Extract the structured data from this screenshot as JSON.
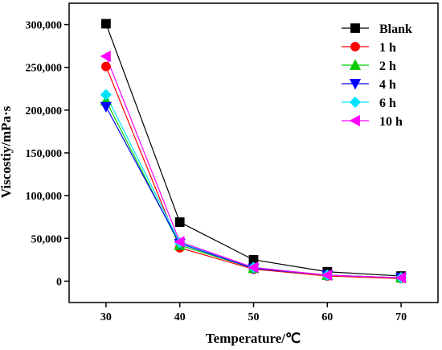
{
  "chart_data": {
    "type": "line",
    "title": "",
    "xlabel": "Temperature/℃",
    "ylabel": "Viscostiy/mPa·s",
    "x": [
      30,
      40,
      50,
      60,
      70
    ],
    "xlim": [
      25,
      75
    ],
    "ylim": [
      -25000,
      325000
    ],
    "xticks": [
      30,
      40,
      50,
      60,
      70
    ],
    "yticks": [
      0,
      50000,
      100000,
      150000,
      200000,
      250000,
      300000
    ],
    "ytick_labels": [
      "0",
      "50,000",
      "100,000",
      "150,000",
      "200,000",
      "250,000",
      "300,000"
    ],
    "grid": false,
    "legend_position": "top-right",
    "series": [
      {
        "name": "Blank",
        "values": [
          301000,
          69000,
          25000,
          11000,
          6000
        ],
        "color": "#000000",
        "marker": "square"
      },
      {
        "name": "1 h",
        "values": [
          251000,
          39000,
          14000,
          6000,
          3000
        ],
        "color": "#ff0000",
        "marker": "circle"
      },
      {
        "name": "2 h",
        "values": [
          211000,
          42000,
          15000,
          7000,
          4000
        ],
        "color": "#00cc00",
        "marker": "triangle-up"
      },
      {
        "name": "4 h",
        "values": [
          204000,
          44000,
          15000,
          7000,
          4000
        ],
        "color": "#0000ff",
        "marker": "triangle-down"
      },
      {
        "name": "6 h",
        "values": [
          218000,
          45000,
          16000,
          7000,
          4000
        ],
        "color": "#00e5ff",
        "marker": "diamond"
      },
      {
        "name": "10 h",
        "values": [
          263000,
          46000,
          16000,
          7000,
          4000
        ],
        "color": "#ff00ff",
        "marker": "triangle-left"
      }
    ]
  }
}
